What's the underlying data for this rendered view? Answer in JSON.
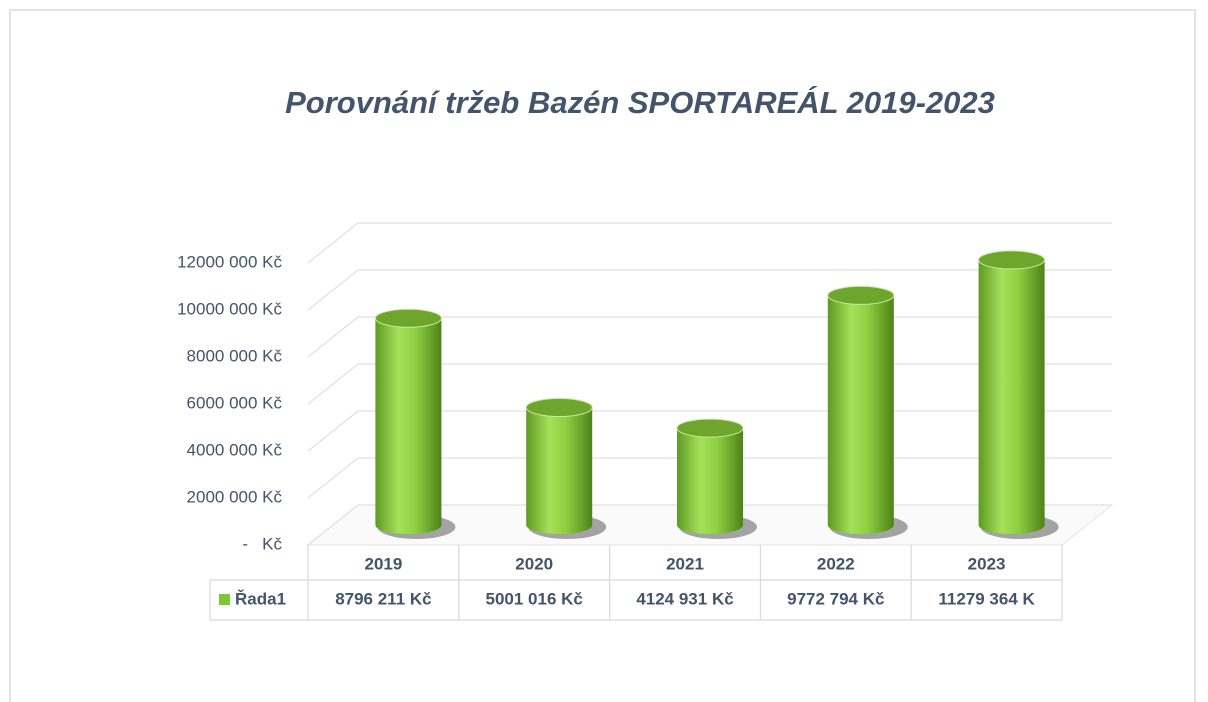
{
  "chart_data": {
    "type": "bar",
    "title": "Porovnání tržeb Bazén SPORTAREÁL 2019-2023",
    "categories": [
      "2019",
      "2020",
      "2021",
      "2022",
      "2023"
    ],
    "series": [
      {
        "name": "Řada1",
        "color": "#7ec636",
        "values": [
          8796211,
          5001016,
          4124931,
          9772794,
          11279364
        ],
        "value_labels": [
          "8796 211 Kč",
          "5001 016 Kč",
          "4124 931 Kč",
          "9772 794 Kč",
          "11279 364 K"
        ]
      }
    ],
    "ylim": [
      0,
      12000000
    ],
    "yticks": [
      {
        "value": 0,
        "label": "-   Kč"
      },
      {
        "value": 2000000,
        "label": "2000 000 Kč"
      },
      {
        "value": 4000000,
        "label": "4000 000 Kč"
      },
      {
        "value": 6000000,
        "label": "6000 000 Kč"
      },
      {
        "value": 8000000,
        "label": "8000 000 Kč"
      },
      {
        "value": 10000000,
        "label": "10000 000 Kč"
      },
      {
        "value": 12000000,
        "label": "12000 000 Kč"
      }
    ],
    "grid": true
  }
}
